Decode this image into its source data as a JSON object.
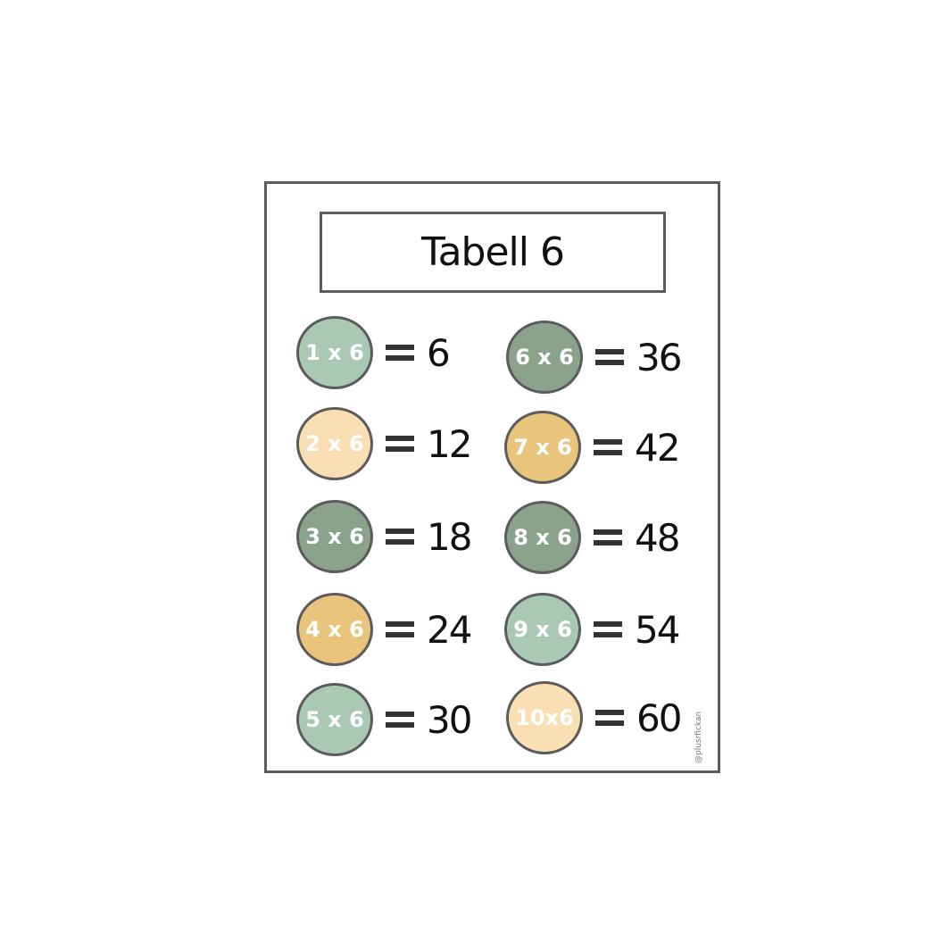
{
  "title": "Tabell 6",
  "watermark": "@plusrfickan",
  "colors": {
    "light_green": "#a9c9b2",
    "dark_green": "#8aa38a",
    "peach": "#fbdfb4",
    "gold": "#e9c47c"
  },
  "items": [
    {
      "expr": "1 x 6",
      "result": "6",
      "color": "#a9c9b2"
    },
    {
      "expr": "2 x 6",
      "result": "12",
      "color": "#fbdfb4"
    },
    {
      "expr": "3 x 6",
      "result": "18",
      "color": "#8aa38a"
    },
    {
      "expr": "4 x 6",
      "result": "24",
      "color": "#e9c47c"
    },
    {
      "expr": "5 x 6",
      "result": "30",
      "color": "#a9c9b2"
    },
    {
      "expr": "6 x 6",
      "result": "36",
      "color": "#8aa38a"
    },
    {
      "expr": "7 x 6",
      "result": "42",
      "color": "#e9c47c"
    },
    {
      "expr": "8 x 6",
      "result": "48",
      "color": "#8aa38a"
    },
    {
      "expr": "9 x 6",
      "result": "54",
      "color": "#a9c9b2"
    },
    {
      "expr": "10x6",
      "result": "60",
      "color": "#fbdfb4"
    }
  ]
}
